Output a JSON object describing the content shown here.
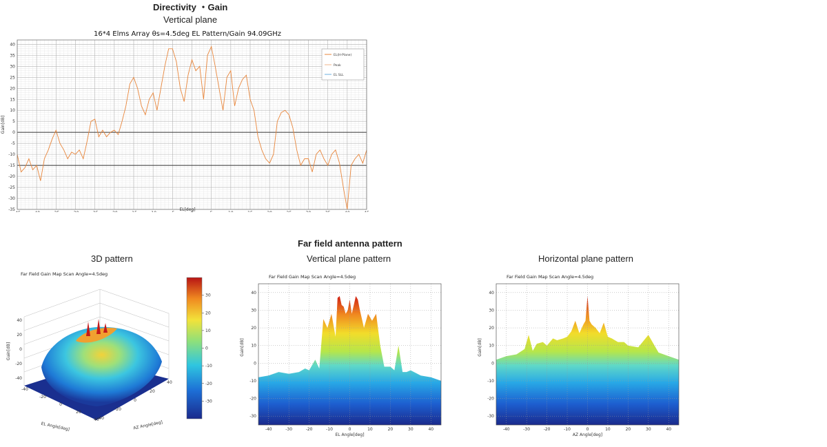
{
  "headings": {
    "directivity": "Directivity ・Gain",
    "vertical_plane": "Vertical plane",
    "far_field": "Far field antenna pattern",
    "pattern_3d": "3D pattern",
    "vertical_pattern": "Vertical plane pattern",
    "horizontal_pattern": "Horizontal plane pattern"
  },
  "colors": {
    "line": "#e8853a",
    "grid": "#c8c8c8",
    "ref_line": "#333333",
    "legend_line2": "#f2b48a",
    "legend_line3": "#6bb2e0"
  },
  "chart_data": [
    {
      "type": "line",
      "title": "16*4 Elms Array θs=4.5deg EL Pattern/Gain 94.09GHz",
      "xlabel": "EL[deg]",
      "ylabel": "Gain[dB]",
      "xlim": [
        -45,
        45
      ],
      "ylim": [
        -35,
        42
      ],
      "xticks": [
        -45,
        -40,
        -35,
        -30,
        -25,
        -20,
        -15,
        -10,
        -5,
        0,
        5,
        10,
        15,
        20,
        25,
        30,
        35,
        40,
        45
      ],
      "yticks": [
        -35,
        -30,
        -25,
        -20,
        -15,
        -10,
        -5,
        0,
        5,
        10,
        15,
        20,
        25,
        30,
        35,
        40
      ],
      "reference_lines": [
        0,
        -15
      ],
      "grid": true,
      "legend_position": "top-right",
      "legend": [
        "EL(H-Plane)",
        "Peak",
        "EL SLL"
      ],
      "series": [
        {
          "name": "EL(H-Plane)",
          "x": [
            -45,
            -44,
            -43,
            -42,
            -41,
            -40,
            -39,
            -38,
            -37,
            -36,
            -35,
            -34,
            -33,
            -32,
            -31,
            -30,
            -29,
            -28,
            -27,
            -26,
            -25,
            -24,
            -23,
            -22,
            -21,
            -20,
            -19,
            -18,
            -17,
            -16,
            -15,
            -14,
            -13,
            -12,
            -11,
            -10,
            -9,
            -8,
            -7,
            -6,
            -5,
            -4,
            -3,
            -2,
            -1,
            0,
            1,
            2,
            3,
            4,
            5,
            6,
            7,
            8,
            9,
            10,
            11,
            12,
            13,
            14,
            15,
            16,
            17,
            18,
            19,
            20,
            21,
            22,
            23,
            24,
            25,
            26,
            27,
            28,
            29,
            30,
            31,
            32,
            33,
            34,
            35,
            36,
            37,
            38,
            39,
            40,
            41,
            42,
            43,
            44,
            45
          ],
          "y": [
            -10,
            -18,
            -16,
            -12,
            -17,
            -15,
            -22,
            -12,
            -8,
            -3,
            1,
            -5,
            -8,
            -12,
            -9,
            -10,
            -8,
            -12,
            -4,
            5,
            6,
            -2,
            1,
            -2,
            0,
            1,
            -1,
            5,
            12,
            22,
            25,
            20,
            12,
            8,
            15,
            18,
            10,
            20,
            30,
            38,
            38,
            32,
            20,
            14,
            26,
            33,
            28,
            30,
            15,
            35,
            39,
            30,
            20,
            10,
            25,
            28,
            12,
            20,
            24,
            26,
            15,
            10,
            -2,
            -8,
            -12,
            -14,
            -10,
            5,
            9,
            10,
            8,
            2,
            -8,
            -15,
            -12,
            -12,
            -18,
            -10,
            -8,
            -12,
            -15,
            -10,
            -8,
            -14,
            -25,
            -35,
            -15,
            -12,
            -10,
            -14,
            -8
          ]
        }
      ]
    },
    {
      "type": "area",
      "title": "Far Field Gain Map Scan Angle=4.5deg",
      "xlabel": "EL Angle[deg]",
      "ylabel": "Gain[dB]",
      "xlim": [
        -45,
        45
      ],
      "ylim": [
        -35,
        45
      ],
      "xticks": [
        -40,
        -30,
        -20,
        -10,
        0,
        10,
        20,
        30,
        40
      ],
      "yticks": [
        -30,
        -20,
        -10,
        0,
        10,
        20,
        30,
        40
      ],
      "series": [
        {
          "x": [
            -45,
            -40,
            -35,
            -30,
            -25,
            -22,
            -20,
            -17,
            -15,
            -13,
            -11,
            -9,
            -7,
            -6,
            -5,
            -4,
            -3,
            -2,
            -1,
            0,
            1,
            2,
            3,
            4,
            5,
            6,
            7,
            9,
            11,
            13,
            15,
            17,
            20,
            22,
            24,
            26,
            28,
            30,
            35,
            40,
            45
          ],
          "y": [
            -8,
            -7,
            -5,
            -6,
            -5,
            -3,
            -4,
            2,
            -3,
            25,
            20,
            28,
            15,
            37,
            38,
            33,
            32,
            28,
            30,
            36,
            28,
            33,
            38,
            36,
            30,
            25,
            20,
            28,
            24,
            28,
            10,
            -2,
            -2,
            -4,
            10,
            -5,
            -5,
            -4,
            -7,
            -8,
            -10
          ]
        }
      ]
    },
    {
      "type": "area",
      "title": "Far Field Gain Map Scan Angle=4.5deg",
      "xlabel": "AZ Angle[deg]",
      "ylabel": "Gain[dB]",
      "xlim": [
        -45,
        45
      ],
      "ylim": [
        -35,
        45
      ],
      "xticks": [
        -40,
        -30,
        -20,
        -10,
        0,
        10,
        20,
        30,
        40
      ],
      "yticks": [
        -30,
        -20,
        -10,
        0,
        10,
        20,
        30,
        40
      ],
      "series": [
        {
          "x": [
            -45,
            -40,
            -35,
            -31,
            -29,
            -27,
            -25,
            -22,
            -20,
            -17,
            -15,
            -12,
            -10,
            -8,
            -6,
            -4,
            -2,
            -1,
            0,
            1,
            2,
            4,
            6,
            8,
            10,
            12,
            15,
            18,
            20,
            25,
            30,
            35,
            40,
            45
          ],
          "y": [
            2,
            4,
            5,
            8,
            16,
            7,
            11,
            12,
            10,
            14,
            13,
            14,
            15,
            18,
            24,
            17,
            22,
            24,
            38,
            24,
            22,
            20,
            17,
            23,
            15,
            14,
            12,
            12,
            10,
            9,
            16,
            6,
            4,
            2
          ]
        }
      ]
    },
    {
      "type": "heatmap",
      "title": "Far Field Gain Map Scan Angle=4.5deg",
      "xlabel": "AZ Angle[deg]",
      "ylabel_left": "EL Angle[deg]",
      "zlabel": "Gain[dB]",
      "ztick_labels": [
        "40",
        "20",
        "0",
        "-20",
        "-40"
      ],
      "el_tick_labels": [
        "-40",
        "-20",
        "0",
        "20",
        "40"
      ],
      "az_tick_labels": [
        "40",
        "20",
        "0",
        "-20",
        "-40"
      ],
      "colorbar_ticks": [
        30,
        20,
        10,
        0,
        -10,
        -20,
        -30
      ]
    }
  ]
}
